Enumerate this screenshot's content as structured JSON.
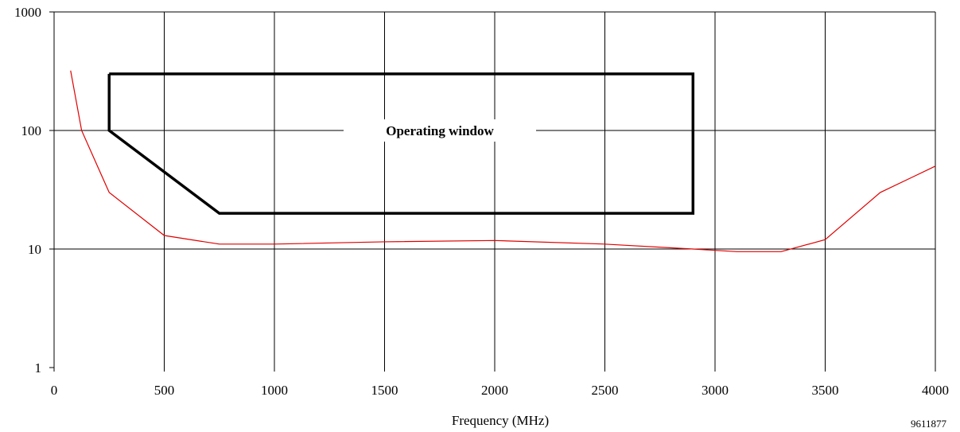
{
  "chart_data": {
    "type": "line",
    "xlabel": "Frequency (MHz)",
    "ylabel": "",
    "figure_id": "9611877",
    "xlim": [
      0,
      4000
    ],
    "ylim": [
      1,
      1000
    ],
    "yscale": "log",
    "grid": true,
    "x_ticks": [
      "0",
      "500",
      "1000",
      "1500",
      "2000",
      "2500",
      "3000",
      "3500",
      "4000"
    ],
    "y_ticks": [
      "1",
      "10",
      "100",
      "1000"
    ],
    "colors": {
      "curve": "#e00000",
      "window": "#000000",
      "grid": "#000000"
    },
    "series": [
      {
        "x": [
          75,
          125,
          250,
          500,
          750,
          1000,
          1500,
          2000,
          2500,
          2900,
          3100,
          3300,
          3500,
          3750,
          4000
        ],
        "y": [
          320,
          100,
          30,
          13,
          11,
          11,
          11.5,
          11.8,
          11,
          10,
          9.5,
          9.5,
          12,
          30,
          50
        ]
      }
    ],
    "annotations": [
      {
        "text": "Operating window",
        "polygon": {
          "x": [
            250,
            2900,
            2900,
            750,
            250,
            250
          ],
          "y": [
            300,
            300,
            20,
            20,
            100,
            300
          ]
        }
      }
    ]
  }
}
